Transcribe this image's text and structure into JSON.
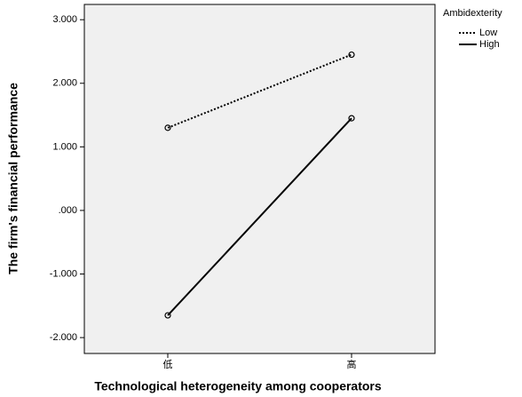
{
  "chart_data": {
    "type": "line",
    "xlabel": "Technological heterogeneity among cooperators",
    "ylabel": "The firm's financial performance",
    "categories": [
      "低",
      "高"
    ],
    "series": [
      {
        "name": "Low",
        "color": "#000000",
        "linestyle": "dashed",
        "values": [
          1.3,
          2.45
        ]
      },
      {
        "name": "High",
        "color": "#000000",
        "linestyle": "solid",
        "values": [
          -1.65,
          1.45
        ]
      }
    ],
    "legend_title": "Ambidexterity",
    "legend": "outside-top-right",
    "ylim": [
      -2.25,
      3.24
    ],
    "yticks": [
      {
        "value": 3,
        "label": "3.000"
      },
      {
        "value": 2,
        "label": "2.000"
      },
      {
        "value": 1,
        "label": "1.000"
      },
      {
        "value": 0,
        "label": ".000"
      },
      {
        "value": -1,
        "label": "-1.000"
      },
      {
        "value": -2,
        "label": "-2.000"
      }
    ],
    "grid": false
  }
}
